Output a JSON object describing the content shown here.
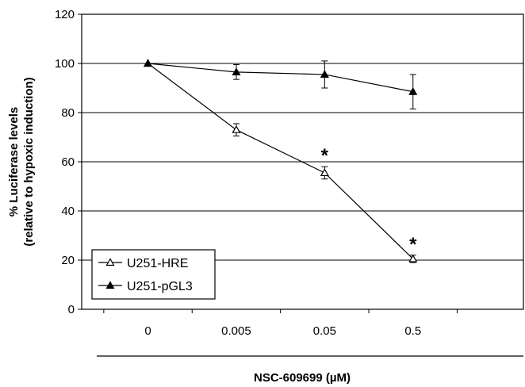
{
  "chart_data": {
    "type": "line",
    "categories": [
      "0",
      "0.005",
      "0.05",
      "0.5"
    ],
    "xlabel": "NSC-609699 (µM)",
    "ylabel": "% Luciferase levels",
    "ylabel_sub": "(relative to hypoxic induction)",
    "ylim": [
      0,
      120
    ],
    "yticks": [
      0,
      20,
      40,
      60,
      80,
      100,
      120
    ],
    "grid": true,
    "legend_position": "bottom-left",
    "series": [
      {
        "name": "U251-HRE",
        "marker": "open-triangle",
        "values": [
          100,
          73,
          55.5,
          20.5
        ],
        "errors": [
          0,
          2.5,
          2.5,
          1.5
        ]
      },
      {
        "name": "U251-pGL3",
        "marker": "filled-triangle",
        "values": [
          100,
          96.5,
          95.5,
          88.5
        ],
        "errors": [
          0,
          3,
          5.5,
          7
        ]
      }
    ],
    "annotations": [
      {
        "text": "*",
        "x": "0.05"
      },
      {
        "text": "*",
        "x": "0.5"
      }
    ]
  }
}
